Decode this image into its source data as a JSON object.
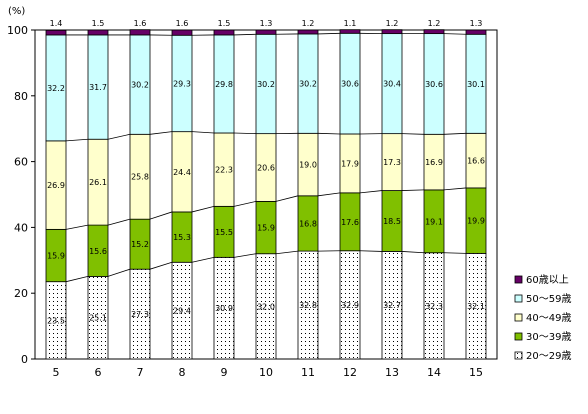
{
  "chart_data": {
    "type": "bar",
    "stacked": true,
    "unit_label": "(%)",
    "categories": [
      "5",
      "6",
      "7",
      "8",
      "9",
      "10",
      "11",
      "12",
      "13",
      "14",
      "15"
    ],
    "ylim": [
      0,
      100
    ],
    "yticks": [
      "0",
      "20",
      "40",
      "60",
      "80",
      "100"
    ],
    "legend_position": "right",
    "series": [
      {
        "name": "20～29歳",
        "pattern": "dots",
        "color": "#ffffff",
        "values": [
          23.5,
          25.1,
          27.3,
          29.4,
          30.9,
          32.0,
          32.8,
          32.9,
          32.7,
          32.3,
          32.1
        ]
      },
      {
        "name": "30～39歳",
        "color": "#80c000",
        "values": [
          15.9,
          15.6,
          15.2,
          15.3,
          15.5,
          15.9,
          16.8,
          17.6,
          18.5,
          19.1,
          19.9
        ]
      },
      {
        "name": "40～49歳",
        "color": "#ffffcc",
        "values": [
          26.9,
          26.1,
          25.8,
          24.4,
          22.3,
          20.6,
          19.0,
          17.9,
          17.3,
          16.9,
          16.6
        ]
      },
      {
        "name": "50～59歳",
        "color": "#ccffff",
        "values": [
          32.2,
          31.7,
          30.2,
          29.3,
          29.8,
          30.2,
          30.2,
          30.6,
          30.4,
          30.6,
          30.1
        ]
      },
      {
        "name": "60歳以上",
        "color": "#660066",
        "values": [
          1.4,
          1.5,
          1.6,
          1.6,
          1.5,
          1.3,
          1.2,
          1.1,
          1.2,
          1.2,
          1.3
        ]
      }
    ],
    "value_labels": [
      [
        "23.5",
        "25.1",
        "27.3",
        "29.4",
        "30.9",
        "32.0",
        "32.8",
        "32.9",
        "32.7",
        "32.3",
        "32.1"
      ],
      [
        "15.9",
        "15.6",
        "15.2",
        "15.3",
        "15.5",
        "15.9",
        "16.8",
        "17.6",
        "18.5",
        "19.1",
        "19.9"
      ],
      [
        "26.9",
        "26.1",
        "25.8",
        "24.4",
        "22.3",
        "20.6",
        "19.0",
        "17.9",
        "17.3",
        "16.9",
        "16.6"
      ],
      [
        "32.2",
        "31.7",
        "30.2",
        "29.3",
        "29.8",
        "30.2",
        "30.2",
        "30.6",
        "30.4",
        "30.6",
        "30.1"
      ],
      [
        "1.4",
        "1.5",
        "1.6",
        "1.6",
        "1.5",
        "1.3",
        "1.2",
        "1.1",
        "1.2",
        "1.2",
        "1.3"
      ]
    ],
    "grid": false,
    "series_lines": true
  }
}
